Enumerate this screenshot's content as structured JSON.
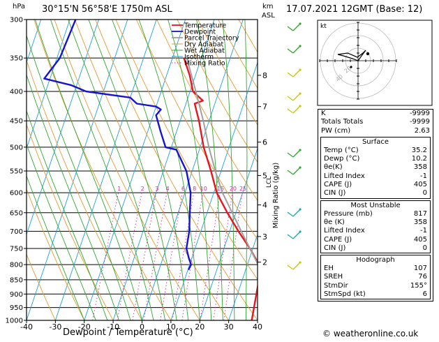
{
  "header": {
    "hpa_unit": "hPa",
    "location": "30°15'N  56°58'E  1750m  ASL",
    "km_unit_1": "km",
    "km_unit_2": "ASL",
    "datetime": "17.07.2021  12GMT  (Base: 12)"
  },
  "chart_data": {
    "type": "line",
    "title": "30°15'N  56°58'E  1750m  ASL",
    "xlabel": "Dewpoint / Temperature (°C)",
    "ylabel": "hPa",
    "xlim": [
      -40,
      40
    ],
    "ylim": [
      1000,
      300
    ],
    "y_scale": "log",
    "x_ticks": [
      "-40",
      "-30",
      "-20",
      "-10",
      "0",
      "10",
      "20",
      "30",
      "40"
    ],
    "pressure_levels": [
      "300",
      "350",
      "400",
      "450",
      "500",
      "550",
      "600",
      "650",
      "700",
      "750",
      "800",
      "850",
      "900",
      "950",
      "1000"
    ],
    "km_ticks": [
      {
        "label": "8",
        "p": 375
      },
      {
        "label": "7",
        "p": 425
      },
      {
        "label": "6",
        "p": 490
      },
      {
        "label": "5",
        "p": 560
      },
      {
        "label": "4",
        "p": 630
      },
      {
        "label": "3",
        "p": 715
      },
      {
        "label": "2",
        "p": 792
      }
    ],
    "lcl_label": "LCL",
    "lcl_p": 575,
    "mixing_ratio_axis_label": "Mixing Ratio (g/kg)",
    "mixing_ratio_labels": [
      "1",
      "2",
      "3",
      "4",
      "6",
      "8",
      "10",
      "15",
      "20",
      "25"
    ],
    "legend": [
      "Temperature",
      "Dewpoint",
      "Parcel Trajectory",
      "Dry Adiabat",
      "Wet Adiabat",
      "Isotherm",
      "Mixing Ratio"
    ],
    "series": [
      {
        "name": "Temperature",
        "color": "#e8141e",
        "points": [
          [
            1000,
            38
          ],
          [
            817,
            35.2
          ],
          [
            800,
            34
          ],
          [
            750,
            29
          ],
          [
            700,
            23
          ],
          [
            650,
            17
          ],
          [
            600,
            11
          ],
          [
            550,
            6.5
          ],
          [
            500,
            1.2
          ],
          [
            450,
            -3.5
          ],
          [
            420,
            -7
          ],
          [
            415,
            -4.5
          ],
          [
            400,
            -9
          ],
          [
            375,
            -12
          ],
          [
            350,
            -16
          ]
        ]
      },
      {
        "name": "Dewpoint",
        "color": "#1414d2",
        "points": [
          [
            817,
            10.2
          ],
          [
            800,
            10.5
          ],
          [
            780,
            9
          ],
          [
            750,
            7
          ],
          [
            700,
            6
          ],
          [
            650,
            4
          ],
          [
            600,
            2
          ],
          [
            550,
            -2
          ],
          [
            505,
            -8
          ],
          [
            500,
            -12
          ],
          [
            470,
            -15.5
          ],
          [
            440,
            -19
          ],
          [
            430,
            -18
          ],
          [
            425,
            -20
          ],
          [
            420,
            -27
          ],
          [
            410,
            -30
          ],
          [
            400,
            -46
          ],
          [
            390,
            -52
          ],
          [
            380,
            -62
          ],
          [
            350,
            -59
          ],
          [
            300,
            -58
          ]
        ]
      },
      {
        "name": "Parcel Trajectory",
        "color": "#a0a0a0",
        "points": [
          [
            817,
            35.2
          ],
          [
            700,
            24
          ],
          [
            600,
            13
          ],
          [
            550,
            8
          ],
          [
            500,
            3
          ],
          [
            450,
            -2
          ],
          [
            400,
            -8
          ],
          [
            350,
            -15
          ]
        ]
      }
    ]
  },
  "indices": {
    "k_label": "K",
    "k_value": "-9999",
    "tt_label": "Totals Totals",
    "tt_value": "-9999",
    "pw_label": "PW (cm)",
    "pw_value": "2.63"
  },
  "surface": {
    "title": "Surface",
    "temp_label": "Temp (°C)",
    "temp_value": "35.2",
    "dewp_label": "Dewp (°C)",
    "dewp_value": "10.2",
    "theta_label": "θe(K)",
    "theta_value": "358",
    "li_label": "Lifted Index",
    "li_value": "-1",
    "cape_label": "CAPE (J)",
    "cape_value": "405",
    "cin_label": "CIN (J)",
    "cin_value": "0"
  },
  "most_unstable": {
    "title": "Most Unstable",
    "pressure_label": "Pressure (mb)",
    "pressure_value": "817",
    "theta_label": "θe (K)",
    "theta_value": "358",
    "li_label": "Lifted Index",
    "li_value": "-1",
    "cape_label": "CAPE (J)",
    "cape_value": "405",
    "cin_label": "CIN (J)",
    "cin_value": "0"
  },
  "hodograph": {
    "title": "Hodograph",
    "kt_label": "kt",
    "eh_label": "EH",
    "eh_value": "107",
    "sreh_label": "SREH",
    "sreh_value": "76",
    "stmdir_label": "StmDir",
    "stmdir_value": "155°",
    "stmspd_label": "StmSpd (kt)",
    "stmspd_value": "6",
    "ring_labels": [
      "20",
      "40"
    ]
  },
  "footer": {
    "copyright": "© weatheronline.co.uk"
  },
  "colors": {
    "temperature": "#e8141e",
    "dewpoint": "#1414d2",
    "parcel": "#a0a0a0",
    "dry_adiabat": "#e69a2e",
    "wet_adiabat": "#2ea82e",
    "isotherm": "#1ea0dc",
    "mixing_ratio": "#e020a0",
    "wind": "#c8c800"
  }
}
